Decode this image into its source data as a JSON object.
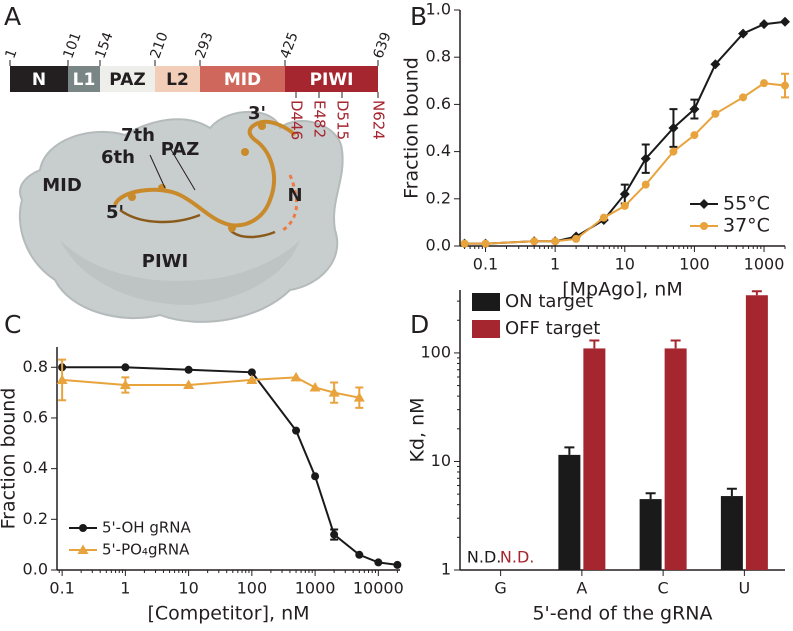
{
  "panels": [
    "A",
    "B",
    "C",
    "D"
  ],
  "domain_map": {
    "domains": [
      {
        "name": "N",
        "color": "#231f20",
        "text_color": "#ffffff"
      },
      {
        "name": "L1",
        "color": "#7a8585",
        "text_color": "#ffffff"
      },
      {
        "name": "PAZ",
        "color": "#eeeeea",
        "text_color": "#231f20"
      },
      {
        "name": "L2",
        "color": "#f2cdb8",
        "text_color": "#231f20"
      },
      {
        "name": "MID",
        "color": "#cf675c",
        "text_color": "#ffffff"
      },
      {
        "name": "PIWI",
        "color": "#a5262f",
        "text_color": "#ffffff"
      }
    ],
    "boundaries": [
      1,
      101,
      154,
      210,
      293,
      425,
      639
    ],
    "residues": [
      "D446",
      "E482",
      "D515",
      "N624"
    ]
  },
  "structure_labels": [
    "MID",
    "PAZ",
    "3'",
    "7th",
    "6th",
    "5'",
    "N",
    "PIWI"
  ],
  "chart_data": [
    {
      "type": "line",
      "log_x": true,
      "x_label": "[MpAgo], nM",
      "y_label": "Fraction bound",
      "x": [
        0.05,
        0.1,
        0.5,
        1,
        2,
        5,
        10,
        20,
        50,
        100,
        200,
        500,
        1000,
        2000
      ],
      "xlim": [
        0.043,
        2000
      ],
      "xticks": [
        0.1,
        1,
        10,
        100,
        1000
      ],
      "ylim": [
        0,
        1
      ],
      "yticks": [
        {
          "value": 0,
          "label": "0.0"
        },
        {
          "value": 0.2,
          "label": "0.2"
        },
        {
          "value": 0.4,
          "label": "0.4"
        },
        {
          "value": 0.6,
          "label": "0.6"
        },
        {
          "value": 0.8,
          "label": "0.8"
        },
        {
          "value": 1,
          "label": "1.0"
        }
      ],
      "legend": "lower right",
      "series": [
        {
          "name": "55°C",
          "color": "#1a1a1a",
          "marker": "diamond",
          "values": [
            0.01,
            0.01,
            0.02,
            0.02,
            0.04,
            0.11,
            0.22,
            0.37,
            0.5,
            0.58,
            0.77,
            0.9,
            0.94,
            0.95
          ],
          "errors": [
            null,
            null,
            null,
            null,
            null,
            null,
            0.04,
            0.06,
            0.08,
            0.04,
            null,
            null,
            null,
            null
          ]
        },
        {
          "name": "37°C",
          "color": "#e8a33d",
          "marker": "circle",
          "values": [
            0.01,
            0.01,
            0.02,
            0.02,
            0.03,
            0.12,
            0.17,
            0.26,
            0.4,
            0.47,
            0.56,
            0.63,
            0.69,
            0.68
          ],
          "errors": [
            null,
            null,
            null,
            null,
            null,
            null,
            null,
            null,
            null,
            null,
            null,
            null,
            null,
            0.05
          ]
        }
      ]
    },
    {
      "type": "line",
      "log_x": true,
      "x_label": "[Competitor], nM",
      "y_label": "Fraction bound",
      "x": [
        0.1,
        1,
        10,
        100,
        500,
        1000,
        2000,
        5000,
        10000,
        20000
      ],
      "xlim": [
        0.083,
        22000
      ],
      "xticks": [
        0.1,
        1,
        10,
        100,
        1000,
        10000
      ],
      "ylim": [
        0,
        0.88
      ],
      "yticks": [
        {
          "value": 0,
          "label": "0.0"
        },
        {
          "value": 0.2,
          "label": "0.2"
        },
        {
          "value": 0.4,
          "label": "0.4"
        },
        {
          "value": 0.6,
          "label": "0.6"
        },
        {
          "value": 0.8,
          "label": "0.8"
        }
      ],
      "legend": "lower left",
      "series": [
        {
          "name": "5'-OH gRNA",
          "color": "#1a1a1a",
          "marker": "circle",
          "values": [
            0.8,
            0.8,
            0.79,
            0.78,
            0.55,
            0.37,
            0.14,
            0.06,
            0.03,
            0.02
          ],
          "errors": [
            null,
            null,
            null,
            null,
            null,
            null,
            0.02,
            null,
            null,
            null
          ]
        },
        {
          "name": "5'-PO₄gRNA",
          "color": "#e8a33d",
          "marker": "triangle",
          "values": [
            0.75,
            0.73,
            0.73,
            0.75,
            0.76,
            0.72,
            0.7,
            0.68,
            null,
            null
          ],
          "errors": [
            0.08,
            0.03,
            null,
            null,
            null,
            null,
            0.04,
            0.04,
            null,
            null
          ]
        }
      ]
    },
    {
      "type": "bar",
      "log_y": true,
      "x_label": "5'-end of the gRNA",
      "y_label": "Kd, nM",
      "categories": [
        "G",
        "A",
        "C",
        "U"
      ],
      "ylim": [
        1,
        380
      ],
      "yticks": [
        1,
        10,
        100
      ],
      "legend": "upper left",
      "series": [
        {
          "name": "ON target",
          "color": "#1a1a1a",
          "values": [
            null,
            11.5,
            4.5,
            4.8
          ],
          "errors": [
            null,
            2,
            0.6,
            0.8
          ]
        },
        {
          "name": "OFF target",
          "color": "#a5262f",
          "values": [
            null,
            110,
            110,
            340
          ],
          "errors": [
            null,
            20,
            20,
            30
          ]
        }
      ],
      "annotations": [
        {
          "text": "N.D.",
          "color": "#1a1a1a"
        },
        {
          "text": "N.D.",
          "color": "#a5262f"
        }
      ]
    }
  ]
}
